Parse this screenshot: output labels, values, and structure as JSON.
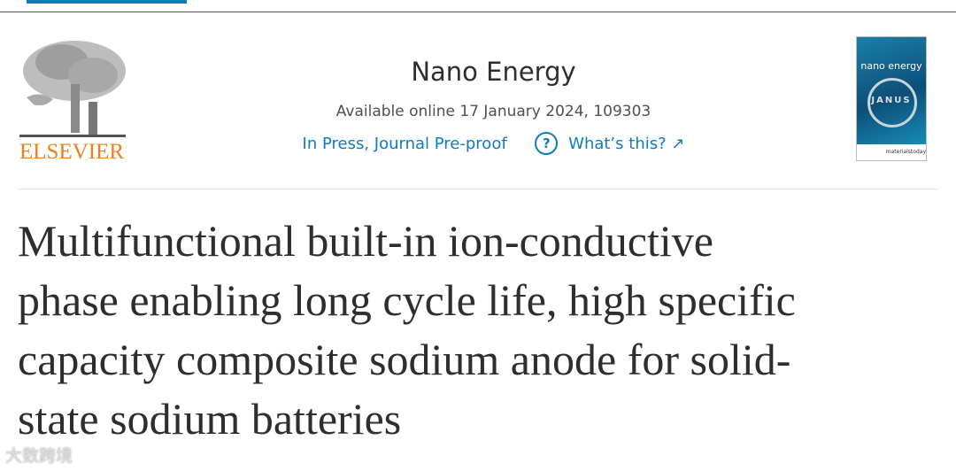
{
  "publisher": {
    "logo_text": "ELSEVIER",
    "logo_color": "#f07f1a"
  },
  "journal": {
    "name": "Nano Energy",
    "availability": "Available online 17 January 2024, 109303",
    "status_link": "In Press, Journal Pre-proof",
    "help_icon": "question-circle-icon",
    "whats_this": "What’s this? ↗",
    "cover": {
      "title": "nano energy",
      "subtitle": "JANUS",
      "footer": "materialstoday"
    }
  },
  "article": {
    "title_lines": [
      "Multifunctional built-in ion-conductive",
      "phase enabling long cycle life, high specific",
      "capacity composite sodium anode for solid-",
      "state sodium batteries"
    ]
  },
  "watermark": "大数跨境",
  "accent_color": "#0c7dbb"
}
